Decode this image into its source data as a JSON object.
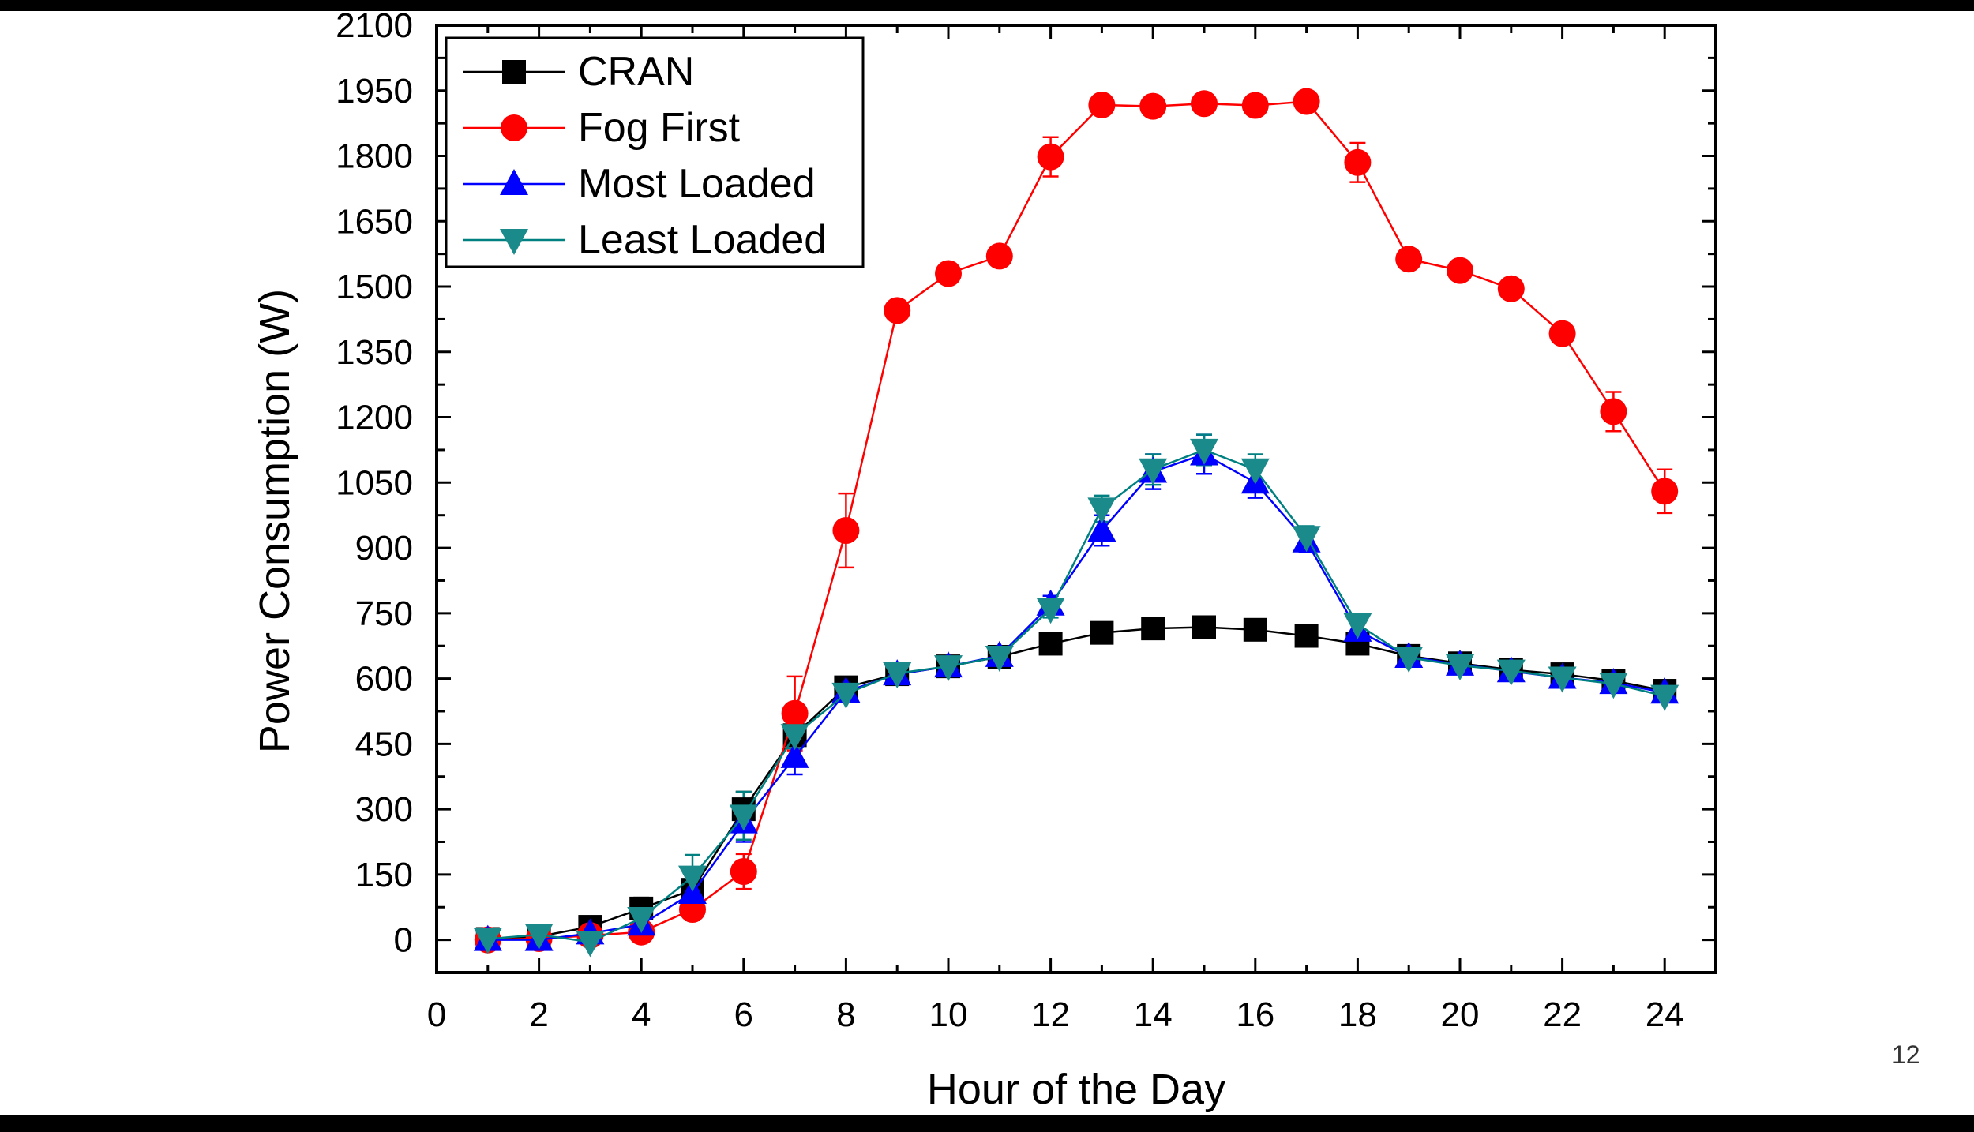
{
  "page_number": "12",
  "chart_data": {
    "type": "line",
    "title": "",
    "xlabel": "Hour of the Day",
    "ylabel": "Power Consumption (W)",
    "xlim": [
      0,
      25
    ],
    "ylim": [
      -75,
      2100
    ],
    "xticks": [
      "0",
      "2",
      "4",
      "6",
      "8",
      "10",
      "12",
      "14",
      "16",
      "18",
      "20",
      "22",
      "24"
    ],
    "yticks": [
      "0",
      "150",
      "300",
      "450",
      "600",
      "750",
      "900",
      "1050",
      "1200",
      "1350",
      "1500",
      "1650",
      "1800",
      "1950",
      "2100"
    ],
    "legend_position": "top-left",
    "x": [
      1,
      2,
      3,
      4,
      5,
      6,
      7,
      8,
      9,
      10,
      11,
      12,
      13,
      14,
      15,
      16,
      17,
      18,
      19,
      20,
      21,
      22,
      23,
      24
    ],
    "series": [
      {
        "name": "CRAN",
        "marker": "square",
        "line_color": "#000000",
        "marker_color": "#000000",
        "values": [
          2,
          8,
          30,
          72,
          115,
          300,
          470,
          580,
          610,
          628,
          650,
          680,
          705,
          715,
          718,
          712,
          698,
          680,
          652,
          635,
          620,
          610,
          595,
          572
        ],
        "errors": [
          0,
          0,
          5,
          25,
          20,
          40,
          30,
          10,
          0,
          0,
          0,
          0,
          0,
          0,
          0,
          0,
          0,
          0,
          0,
          0,
          0,
          0,
          0,
          0
        ]
      },
      {
        "name": "Fog First",
        "marker": "circle",
        "line_color": "#ff0000",
        "marker_color": "#ff0000",
        "values": [
          0,
          3,
          10,
          18,
          70,
          157,
          520,
          940,
          1445,
          1530,
          1570,
          1798,
          1917,
          1914,
          1920,
          1916,
          1925,
          1785,
          1563,
          1537,
          1495,
          1392,
          1213,
          1030
        ],
        "errors": [
          0,
          0,
          0,
          0,
          25,
          40,
          85,
          85,
          0,
          0,
          0,
          45,
          0,
          0,
          0,
          0,
          0,
          45,
          0,
          0,
          0,
          0,
          45,
          50
        ]
      },
      {
        "name": "Most Loaded",
        "marker": "triangle-up",
        "line_color": "#0000ff",
        "marker_color": "#0000ff",
        "values": [
          0,
          0,
          15,
          35,
          108,
          270,
          420,
          570,
          610,
          628,
          652,
          770,
          940,
          1075,
          1115,
          1050,
          915,
          710,
          650,
          632,
          617,
          602,
          590,
          568
        ],
        "errors": [
          0,
          0,
          0,
          0,
          25,
          45,
          40,
          10,
          0,
          0,
          0,
          20,
          35,
          40,
          45,
          35,
          25,
          20,
          0,
          0,
          0,
          0,
          0,
          0
        ]
      },
      {
        "name": "Least Loaded",
        "marker": "triangle-down",
        "line_color": "#008080",
        "marker_color": "#1a8a8a",
        "values": [
          2,
          12,
          -5,
          50,
          145,
          285,
          470,
          565,
          612,
          628,
          650,
          760,
          990,
          1080,
          1125,
          1080,
          925,
          725,
          648,
          630,
          618,
          602,
          588,
          560
        ],
        "errors": [
          0,
          20,
          0,
          0,
          50,
          55,
          30,
          10,
          0,
          0,
          0,
          20,
          30,
          35,
          35,
          35,
          25,
          20,
          0,
          0,
          0,
          0,
          0,
          0
        ]
      }
    ]
  }
}
